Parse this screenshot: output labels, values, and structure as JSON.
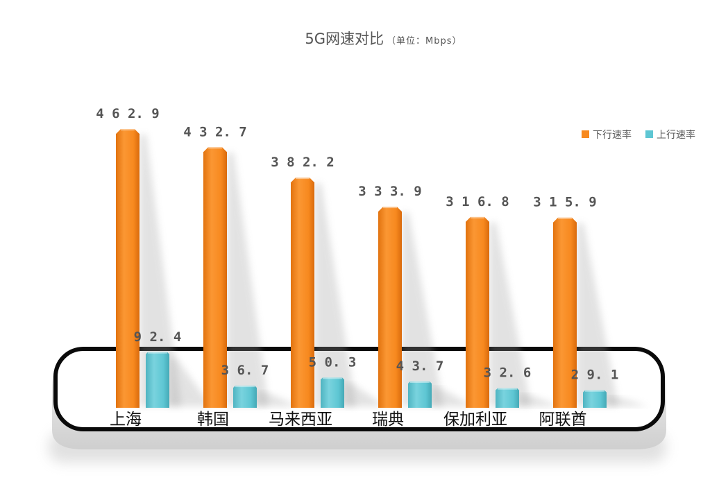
{
  "chart_data": {
    "type": "bar",
    "title": "5G网速对比",
    "subtitle": "（单位：Mbps）",
    "categories": [
      "上海",
      "韩国",
      "马来西亚",
      "瑞典",
      "保加利亚",
      "阿联酋"
    ],
    "series": [
      {
        "name": "下行速率",
        "color": "#F7891F",
        "values": [
          462.9,
          432.7,
          382.2,
          333.9,
          316.8,
          315.9
        ]
      },
      {
        "name": "上行速率",
        "color": "#5EC6D3",
        "values": [
          92.4,
          36.7,
          50.3,
          43.7,
          32.6,
          29.1
        ]
      }
    ],
    "ylim": [
      0,
      500
    ],
    "grid": false,
    "legend_position": "top-right",
    "decoration": "phone-frame"
  }
}
